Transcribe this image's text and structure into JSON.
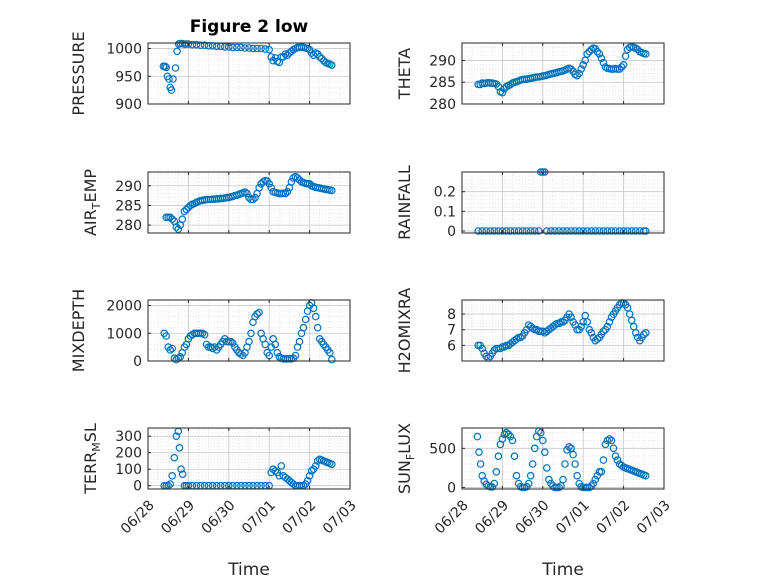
{
  "figure": {
    "title": "Figure 2 low",
    "marker_color": "#0072BD",
    "xlabel": "Time",
    "x_tick_labels": [
      "06/28",
      "06/29",
      "06/30",
      "07/01",
      "07/02",
      "07/03"
    ]
  },
  "chart_data": [
    {
      "id": "pressure",
      "type": "scatter",
      "ylabel": "PRESSURE",
      "ylabel_sub": "",
      "title": "Figure 2 low",
      "xlim": [
        0,
        5
      ],
      "ylim": [
        900,
        1010
      ],
      "yticks": [
        900,
        950,
        1000
      ],
      "ytick_labels": [
        "900",
        "950",
        "1000"
      ],
      "x_tick_labels": [],
      "x": [
        0.38,
        0.42,
        0.45,
        0.48,
        0.52,
        0.55,
        0.58,
        0.62,
        0.68,
        0.72,
        0.76,
        0.8,
        0.85,
        0.9,
        0.95,
        1.0,
        1.1,
        1.2,
        1.3,
        1.4,
        1.5,
        1.6,
        1.7,
        1.8,
        1.9,
        2.0,
        2.1,
        2.2,
        2.3,
        2.4,
        2.5,
        2.6,
        2.7,
        2.8,
        2.9,
        3.0,
        3.05,
        3.1,
        3.15,
        3.2,
        3.25,
        3.3,
        3.35,
        3.4,
        3.45,
        3.5,
        3.55,
        3.6,
        3.65,
        3.7,
        3.75,
        3.8,
        3.85,
        3.9,
        3.95,
        4.0,
        4.05,
        4.1,
        4.15,
        4.2,
        4.25,
        4.3,
        4.35,
        4.4,
        4.45,
        4.5,
        4.55
      ],
      "y": [
        968,
        968,
        966,
        950,
        945,
        930,
        925,
        945,
        965,
        995,
        1008,
        1009,
        1009,
        1008,
        1008,
        1008,
        1007,
        1007,
        1006,
        1006,
        1005,
        1005,
        1004,
        1004,
        1003,
        1003,
        1002,
        1002,
        1002,
        1001,
        1001,
        1000,
        1000,
        1000,
        999,
        998,
        985,
        978,
        983,
        977,
        975,
        985,
        985,
        990,
        988,
        992,
        995,
        998,
        1000,
        1002,
        1002,
        1003,
        1002,
        1001,
        1000,
        998,
        992,
        988,
        992,
        990,
        985,
        982,
        978,
        975,
        973,
        972,
        970
      ]
    },
    {
      "id": "theta",
      "type": "scatter",
      "ylabel": "THETA",
      "ylabel_sub": "",
      "xlim": [
        0,
        5
      ],
      "ylim": [
        280,
        294
      ],
      "yticks": [
        280,
        285,
        290
      ],
      "ytick_labels": [
        "280",
        "285",
        "290"
      ],
      "x_tick_labels": [],
      "x": [
        0.4,
        0.45,
        0.5,
        0.55,
        0.6,
        0.65,
        0.7,
        0.75,
        0.8,
        0.85,
        0.9,
        0.95,
        1.0,
        1.05,
        1.1,
        1.15,
        1.2,
        1.25,
        1.3,
        1.35,
        1.4,
        1.45,
        1.5,
        1.55,
        1.6,
        1.65,
        1.7,
        1.75,
        1.8,
        1.85,
        1.9,
        1.95,
        2.0,
        2.05,
        2.1,
        2.15,
        2.2,
        2.25,
        2.3,
        2.35,
        2.4,
        2.45,
        2.5,
        2.55,
        2.6,
        2.65,
        2.7,
        2.75,
        2.8,
        2.85,
        2.9,
        2.95,
        3.0,
        3.05,
        3.1,
        3.15,
        3.2,
        3.25,
        3.3,
        3.35,
        3.4,
        3.45,
        3.5,
        3.55,
        3.6,
        3.65,
        3.7,
        3.75,
        3.8,
        3.85,
        3.9,
        3.95,
        4.0,
        4.05,
        4.1,
        4.15,
        4.2,
        4.25,
        4.3,
        4.35,
        4.4,
        4.45,
        4.5,
        4.55
      ],
      "y": [
        284.5,
        284.5,
        284.8,
        284.7,
        284.8,
        284.9,
        284.8,
        284.8,
        284.7,
        284.6,
        284.0,
        282.8,
        282.6,
        283.5,
        284.0,
        284.2,
        284.5,
        284.8,
        285.0,
        285.1,
        285.3,
        285.5,
        285.6,
        285.7,
        285.7,
        285.8,
        285.9,
        286.0,
        286.1,
        286.2,
        286.2,
        286.3,
        286.4,
        286.5,
        286.6,
        286.8,
        286.9,
        287.0,
        287.1,
        287.2,
        287.4,
        287.5,
        287.6,
        287.8,
        288.0,
        288.2,
        288.0,
        287.5,
        286.8,
        286.5,
        287.0,
        288.0,
        289.0,
        290.0,
        291.5,
        292.0,
        292.5,
        292.8,
        292.7,
        292.0,
        291.5,
        290.5,
        289.5,
        288.5,
        288.2,
        288.1,
        288.0,
        288.0,
        288.1,
        288.0,
        288.0,
        288.5,
        289.0,
        291.0,
        292.5,
        293.0,
        293.2,
        293.0,
        292.8,
        292.5,
        292.0,
        291.8,
        291.6,
        291.5
      ]
    },
    {
      "id": "airtemp",
      "type": "scatter",
      "ylabel": "AIR",
      "ylabel_sub": "T",
      "ylabel_rest": "EMP",
      "xlim": [
        0,
        5
      ],
      "ylim": [
        278,
        293.5
      ],
      "yticks": [
        280,
        285,
        290
      ],
      "ytick_labels": [
        "280",
        "285",
        "290"
      ],
      "x_tick_labels": [],
      "x": [
        0.45,
        0.5,
        0.55,
        0.6,
        0.65,
        0.7,
        0.75,
        0.8,
        0.85,
        0.9,
        0.95,
        1.0,
        1.05,
        1.1,
        1.15,
        1.2,
        1.25,
        1.3,
        1.35,
        1.4,
        1.45,
        1.5,
        1.55,
        1.6,
        1.65,
        1.7,
        1.75,
        1.8,
        1.85,
        1.9,
        1.95,
        2.0,
        2.05,
        2.1,
        2.15,
        2.2,
        2.25,
        2.3,
        2.35,
        2.4,
        2.45,
        2.5,
        2.55,
        2.6,
        2.65,
        2.7,
        2.75,
        2.8,
        2.85,
        2.9,
        2.95,
        3.0,
        3.05,
        3.1,
        3.15,
        3.2,
        3.25,
        3.3,
        3.35,
        3.4,
        3.45,
        3.5,
        3.55,
        3.6,
        3.65,
        3.7,
        3.75,
        3.8,
        3.85,
        3.9,
        3.95,
        4.0,
        4.05,
        4.1,
        4.15,
        4.2,
        4.25,
        4.3,
        4.35,
        4.4,
        4.45,
        4.5,
        4.55
      ],
      "y": [
        282.0,
        282.0,
        282.0,
        281.5,
        281.0,
        279.5,
        279.0,
        280.0,
        281.5,
        283.5,
        284.0,
        284.5,
        285.0,
        285.3,
        285.5,
        285.8,
        286.0,
        286.2,
        286.3,
        286.4,
        286.5,
        286.5,
        286.5,
        286.6,
        286.6,
        286.7,
        286.7,
        286.8,
        286.8,
        286.9,
        287.0,
        287.0,
        287.2,
        287.3,
        287.5,
        287.6,
        287.8,
        288.0,
        288.2,
        288.4,
        288.0,
        287.0,
        286.5,
        286.5,
        287.0,
        288.0,
        289.5,
        290.5,
        291.0,
        291.3,
        291.2,
        290.5,
        289.5,
        288.5,
        288.3,
        288.2,
        288.0,
        288.0,
        288.1,
        288.0,
        288.5,
        289.5,
        291.0,
        292.0,
        292.3,
        292.0,
        291.5,
        291.0,
        290.8,
        290.6,
        290.5,
        290.5,
        290.0,
        289.8,
        289.6,
        289.5,
        289.4,
        289.3,
        289.2,
        289.1,
        289.0,
        288.9,
        288.8
      ]
    },
    {
      "id": "rainfall",
      "type": "scatter",
      "ylabel": "RAINFALL",
      "ylabel_sub": "",
      "xlim": [
        0,
        5
      ],
      "ylim": [
        -0.01,
        0.3
      ],
      "yticks": [
        0,
        0.1,
        0.2
      ],
      "ytick_labels": [
        "0",
        "0.1",
        "0.2"
      ],
      "x_tick_labels": [],
      "x": [
        0.4,
        0.5,
        0.6,
        0.7,
        0.8,
        0.9,
        1.0,
        1.1,
        1.2,
        1.3,
        1.4,
        1.5,
        1.6,
        1.7,
        1.8,
        1.9,
        1.95,
        2.0,
        2.05,
        2.1,
        2.2,
        2.3,
        2.4,
        2.5,
        2.6,
        2.7,
        2.8,
        2.9,
        3.0,
        3.1,
        3.2,
        3.3,
        3.4,
        3.5,
        3.6,
        3.7,
        3.8,
        3.9,
        4.0,
        4.1,
        4.2,
        4.3,
        4.4,
        4.5,
        4.55
      ],
      "y": [
        0,
        0,
        0,
        0,
        0,
        0,
        0,
        0,
        0,
        0,
        0,
        0,
        0,
        0,
        0,
        0,
        0.3,
        0.3,
        0.3,
        0,
        0,
        0,
        0,
        0,
        0,
        0,
        0,
        0,
        0,
        0,
        0,
        0,
        0,
        0,
        0,
        0,
        0,
        0,
        0,
        0,
        0,
        0,
        0,
        0,
        0
      ]
    },
    {
      "id": "mixdepth",
      "type": "scatter",
      "ylabel": "MIXDEPTH",
      "ylabel_sub": "",
      "xlim": [
        0,
        5
      ],
      "ylim": [
        0,
        2200
      ],
      "yticks": [
        0,
        1000,
        2000
      ],
      "ytick_labels": [
        "0",
        "1000",
        "2000"
      ],
      "x_tick_labels": [],
      "x": [
        0.4,
        0.45,
        0.5,
        0.55,
        0.6,
        0.65,
        0.7,
        0.75,
        0.8,
        0.85,
        0.9,
        0.95,
        1.0,
        1.05,
        1.1,
        1.15,
        1.2,
        1.25,
        1.3,
        1.35,
        1.4,
        1.45,
        1.5,
        1.55,
        1.6,
        1.65,
        1.7,
        1.75,
        1.8,
        1.85,
        1.9,
        1.95,
        2.0,
        2.05,
        2.1,
        2.15,
        2.2,
        2.25,
        2.3,
        2.35,
        2.4,
        2.45,
        2.5,
        2.55,
        2.6,
        2.65,
        2.7,
        2.75,
        2.8,
        2.85,
        2.9,
        2.95,
        3.0,
        3.05,
        3.1,
        3.15,
        3.2,
        3.25,
        3.3,
        3.35,
        3.4,
        3.45,
        3.5,
        3.55,
        3.6,
        3.65,
        3.7,
        3.75,
        3.8,
        3.85,
        3.9,
        3.95,
        4.0,
        4.05,
        4.1,
        4.15,
        4.2,
        4.25,
        4.3,
        4.35,
        4.4,
        4.45,
        4.5,
        4.55
      ],
      "y": [
        1000,
        900,
        500,
        400,
        450,
        100,
        50,
        100,
        150,
        300,
        500,
        600,
        800,
        900,
        950,
        1000,
        1000,
        1000,
        1000,
        1000,
        950,
        600,
        500,
        500,
        450,
        500,
        400,
        500,
        600,
        700,
        800,
        700,
        700,
        700,
        650,
        500,
        400,
        300,
        250,
        200,
        300,
        500,
        700,
        1000,
        1400,
        1600,
        1700,
        1750,
        1000,
        800,
        600,
        300,
        200,
        500,
        800,
        600,
        300,
        150,
        100,
        80,
        80,
        80,
        80,
        80,
        100,
        200,
        500,
        700,
        1000,
        1200,
        1500,
        1800,
        2000,
        2100,
        1900,
        1600,
        1200,
        800,
        700,
        600,
        500,
        400,
        300,
        50
      ]
    },
    {
      "id": "h2omixra",
      "type": "scatter",
      "ylabel": "H2OMIXRA",
      "ylabel_sub": "",
      "xlim": [
        0,
        5
      ],
      "ylim": [
        5,
        8.9
      ],
      "yticks": [
        6,
        7,
        8
      ],
      "ytick_labels": [
        "6",
        "7",
        "8"
      ],
      "x_tick_labels": [],
      "x": [
        0.4,
        0.45,
        0.5,
        0.55,
        0.6,
        0.65,
        0.7,
        0.75,
        0.8,
        0.85,
        0.9,
        0.95,
        1.0,
        1.05,
        1.1,
        1.15,
        1.2,
        1.25,
        1.3,
        1.35,
        1.4,
        1.45,
        1.5,
        1.55,
        1.6,
        1.65,
        1.7,
        1.75,
        1.8,
        1.85,
        1.9,
        1.95,
        2.0,
        2.05,
        2.1,
        2.15,
        2.2,
        2.25,
        2.3,
        2.35,
        2.4,
        2.45,
        2.5,
        2.55,
        2.6,
        2.65,
        2.7,
        2.75,
        2.8,
        2.85,
        2.9,
        2.95,
        3.0,
        3.05,
        3.1,
        3.15,
        3.2,
        3.25,
        3.3,
        3.35,
        3.4,
        3.45,
        3.5,
        3.55,
        3.6,
        3.65,
        3.7,
        3.75,
        3.8,
        3.85,
        3.9,
        3.95,
        4.0,
        4.05,
        4.1,
        4.15,
        4.2,
        4.25,
        4.3,
        4.35,
        4.4,
        4.45,
        4.5,
        4.55
      ],
      "y": [
        6.0,
        6.0,
        5.8,
        5.5,
        5.3,
        5.2,
        5.3,
        5.5,
        5.7,
        5.8,
        5.8,
        5.8,
        5.9,
        5.9,
        6.0,
        6.0,
        6.1,
        6.2,
        6.3,
        6.4,
        6.5,
        6.5,
        6.6,
        6.8,
        7.0,
        7.3,
        7.2,
        7.1,
        7.0,
        7.0,
        6.9,
        6.9,
        6.9,
        6.8,
        6.9,
        7.0,
        7.1,
        7.2,
        7.3,
        7.4,
        7.4,
        7.5,
        7.5,
        7.6,
        7.8,
        8.0,
        7.8,
        7.5,
        7.3,
        7.0,
        7.0,
        7.2,
        7.5,
        7.9,
        7.5,
        7.0,
        6.8,
        6.5,
        6.3,
        6.4,
        6.5,
        6.7,
        6.9,
        7.0,
        7.2,
        7.5,
        7.8,
        8.0,
        8.2,
        8.4,
        8.6,
        8.7,
        8.7,
        8.6,
        8.4,
        8.0,
        7.6,
        7.2,
        6.8,
        6.5,
        6.3,
        6.5,
        6.7,
        6.8
      ]
    },
    {
      "id": "terrmsl",
      "type": "scatter",
      "ylabel": "TERR",
      "ylabel_sub": "M",
      "ylabel_rest": "SL",
      "xlim": [
        0,
        5
      ],
      "ylim": [
        -20,
        350
      ],
      "yticks": [
        0,
        100,
        200,
        300
      ],
      "ytick_labels": [
        "0",
        "100",
        "200",
        "300"
      ],
      "x_tick_labels": [
        "06/28",
        "06/29",
        "06/30",
        "07/01",
        "07/02",
        "07/03"
      ],
      "x": [
        0.4,
        0.45,
        0.5,
        0.55,
        0.6,
        0.65,
        0.7,
        0.75,
        0.78,
        0.82,
        0.86,
        0.9,
        0.95,
        1.0,
        1.1,
        1.2,
        1.3,
        1.4,
        1.5,
        1.6,
        1.7,
        1.8,
        1.9,
        2.0,
        2.1,
        2.2,
        2.3,
        2.4,
        2.5,
        2.6,
        2.7,
        2.8,
        2.9,
        3.0,
        3.05,
        3.1,
        3.15,
        3.2,
        3.25,
        3.3,
        3.35,
        3.4,
        3.45,
        3.5,
        3.55,
        3.6,
        3.65,
        3.7,
        3.75,
        3.8,
        3.85,
        3.9,
        3.95,
        4.0,
        4.05,
        4.1,
        4.15,
        4.2,
        4.25,
        4.3,
        4.35,
        4.4,
        4.45,
        4.5,
        4.55
      ],
      "y": [
        0,
        0,
        0,
        10,
        60,
        170,
        300,
        330,
        230,
        100,
        70,
        0,
        0,
        0,
        0,
        0,
        0,
        0,
        0,
        0,
        0,
        0,
        0,
        0,
        0,
        0,
        0,
        0,
        0,
        0,
        0,
        0,
        0,
        0,
        80,
        100,
        90,
        80,
        60,
        120,
        60,
        50,
        40,
        30,
        20,
        10,
        0,
        0,
        0,
        0,
        0,
        10,
        30,
        60,
        90,
        100,
        120,
        150,
        160,
        155,
        150,
        145,
        140,
        135,
        130
      ]
    },
    {
      "id": "sunflux",
      "type": "scatter",
      "ylabel": "SUN",
      "ylabel_sub": "F",
      "ylabel_rest": "LUX",
      "xlim": [
        0,
        5
      ],
      "ylim": [
        -20,
        760
      ],
      "yticks": [
        0,
        500
      ],
      "ytick_labels": [
        "0",
        "500"
      ],
      "x_tick_labels": [
        "06/28",
        "06/29",
        "06/30",
        "07/01",
        "07/02",
        "07/03"
      ],
      "x": [
        0.38,
        0.42,
        0.46,
        0.5,
        0.55,
        0.6,
        0.65,
        0.7,
        0.75,
        0.8,
        0.85,
        0.9,
        0.95,
        1.0,
        1.05,
        1.1,
        1.15,
        1.2,
        1.25,
        1.3,
        1.35,
        1.4,
        1.45,
        1.5,
        1.55,
        1.6,
        1.65,
        1.7,
        1.75,
        1.8,
        1.85,
        1.9,
        1.95,
        2.0,
        2.05,
        2.1,
        2.15,
        2.2,
        2.25,
        2.3,
        2.35,
        2.4,
        2.45,
        2.5,
        2.55,
        2.6,
        2.65,
        2.7,
        2.75,
        2.8,
        2.85,
        2.9,
        2.95,
        3.0,
        3.05,
        3.1,
        3.15,
        3.2,
        3.25,
        3.3,
        3.35,
        3.4,
        3.45,
        3.5,
        3.55,
        3.6,
        3.65,
        3.7,
        3.75,
        3.8,
        3.85,
        3.9,
        3.95,
        4.0,
        4.05,
        4.1,
        4.15,
        4.2,
        4.25,
        4.3,
        4.35,
        4.4,
        4.45,
        4.5,
        4.55
      ],
      "y": [
        650,
        450,
        300,
        150,
        80,
        40,
        20,
        10,
        5,
        50,
        200,
        400,
        550,
        620,
        680,
        700,
        680,
        650,
        600,
        400,
        150,
        50,
        10,
        0,
        0,
        10,
        50,
        150,
        300,
        500,
        650,
        720,
        700,
        600,
        450,
        250,
        100,
        50,
        20,
        0,
        0,
        0,
        20,
        100,
        300,
        480,
        520,
        500,
        420,
        300,
        150,
        50,
        10,
        0,
        0,
        0,
        0,
        20,
        50,
        100,
        150,
        200,
        200,
        350,
        550,
        600,
        620,
        600,
        500,
        400,
        350,
        300,
        280,
        260,
        250,
        240,
        230,
        220,
        210,
        200,
        190,
        180,
        170,
        160,
        150
      ]
    }
  ]
}
